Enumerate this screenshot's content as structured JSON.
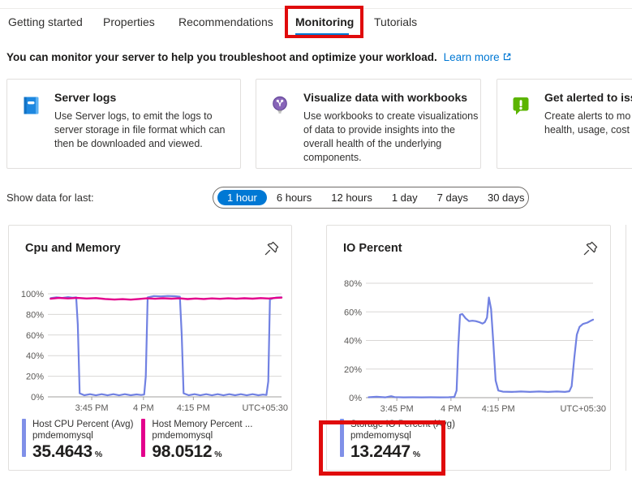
{
  "tabs": [
    "Getting started",
    "Properties",
    "Recommendations",
    "Monitoring",
    "Tutorials"
  ],
  "active_tab": "Monitoring",
  "intro": {
    "text": "You can monitor your server to help you troubleshoot and optimize your workload.",
    "link": "Learn more"
  },
  "cards": [
    {
      "icon": "server-logs-icon",
      "title": "Server logs",
      "lines": [
        "Use Server logs, to emit the logs to",
        "server storage in file format which can",
        "then be downloaded and viewed."
      ]
    },
    {
      "icon": "workbooks-icon",
      "title": "Visualize data with workbooks",
      "lines": [
        "Use workbooks to create visualizations",
        "of data to provide insights into the",
        "overall health of the underlying",
        "components."
      ]
    },
    {
      "icon": "alerts-icon",
      "title": "Get alerted to iss",
      "lines": [
        "Create alerts to mo",
        "health, usage, cost"
      ]
    }
  ],
  "time_range": {
    "label": "Show data for last:",
    "options": [
      "1 hour",
      "6 hours",
      "12 hours",
      "1 day",
      "7 days",
      "30 days"
    ],
    "selected": "1 hour"
  },
  "colors": {
    "accent": "#0078d4",
    "highlight_red": "#e00b0c",
    "line_blue": "#7181e2",
    "line_pink": "#e3008c",
    "legend_bar_blue": "#8090e8"
  },
  "chart_data": [
    {
      "type": "line",
      "title": "Cpu and Memory",
      "corner_label": "UTC+05:30",
      "ylim": [
        0,
        100
      ],
      "yticks": [
        {
          "v": 0,
          "label": "0%"
        },
        {
          "v": 20,
          "label": "20%"
        },
        {
          "v": 40,
          "label": "40%"
        },
        {
          "v": 60,
          "label": "60%"
        },
        {
          "v": 80,
          "label": "80%"
        },
        {
          "v": 100,
          "label": "100%"
        }
      ],
      "xticks": [
        {
          "f": 0.182,
          "label": "3:45 PM"
        },
        {
          "f": 0.405,
          "label": "4 PM"
        },
        {
          "f": 0.62,
          "label": "4:15 PM"
        }
      ],
      "series": [
        {
          "name": "Host CPU Percent (Avg)",
          "resource": "pmdemomysql",
          "value": "35.4643",
          "unit": "%",
          "color": "#7181e2",
          "width": 2.2,
          "points": [
            [
              0.005,
              95.8
            ],
            [
              0.03,
              96.6
            ],
            [
              0.055,
              96.0
            ],
            [
              0.08,
              96.8
            ],
            [
              0.1,
              96.2
            ],
            [
              0.115,
              96.5
            ],
            [
              0.122,
              70
            ],
            [
              0.13,
              3.5
            ],
            [
              0.15,
              1.6
            ],
            [
              0.175,
              2.6
            ],
            [
              0.2,
              1.5
            ],
            [
              0.225,
              2.6
            ],
            [
              0.25,
              1.5
            ],
            [
              0.275,
              2.6
            ],
            [
              0.3,
              1.5
            ],
            [
              0.325,
              2.6
            ],
            [
              0.35,
              1.6
            ],
            [
              0.375,
              2.4
            ],
            [
              0.395,
              1.8
            ],
            [
              0.408,
              2.2
            ],
            [
              0.415,
              20
            ],
            [
              0.423,
              96.5
            ],
            [
              0.45,
              97.8
            ],
            [
              0.48,
              97.5
            ],
            [
              0.51,
              97.9
            ],
            [
              0.54,
              97.6
            ],
            [
              0.562,
              97.2
            ],
            [
              0.57,
              60
            ],
            [
              0.578,
              3.5
            ],
            [
              0.6,
              1.6
            ],
            [
              0.625,
              2.6
            ],
            [
              0.65,
              1.5
            ],
            [
              0.675,
              2.6
            ],
            [
              0.7,
              1.5
            ],
            [
              0.725,
              2.6
            ],
            [
              0.75,
              1.5
            ],
            [
              0.775,
              2.6
            ],
            [
              0.8,
              1.6
            ],
            [
              0.825,
              2.6
            ],
            [
              0.85,
              1.5
            ],
            [
              0.875,
              2.6
            ],
            [
              0.9,
              1.6
            ],
            [
              0.92,
              2.2
            ],
            [
              0.935,
              1.8
            ],
            [
              0.943,
              15
            ],
            [
              0.95,
              94.5
            ],
            [
              0.965,
              95.8
            ],
            [
              0.98,
              96.4
            ],
            [
              1,
              96.6
            ]
          ]
        },
        {
          "name": "Host Memory Percent ...",
          "resource": "pmdemomysql",
          "value": "98.0512",
          "unit": "%",
          "color": "#e3008c",
          "width": 2.4,
          "points": [
            [
              0.005,
              95.2
            ],
            [
              0.04,
              96.0
            ],
            [
              0.08,
              95.5
            ],
            [
              0.12,
              96.0
            ],
            [
              0.16,
              95.4
            ],
            [
              0.2,
              95.8
            ],
            [
              0.24,
              95.0
            ],
            [
              0.28,
              94.4
            ],
            [
              0.315,
              94.8
            ],
            [
              0.35,
              94.3
            ],
            [
              0.385,
              95.0
            ],
            [
              0.42,
              95.6
            ],
            [
              0.455,
              95.2
            ],
            [
              0.49,
              95.7
            ],
            [
              0.525,
              95.3
            ],
            [
              0.56,
              95.6
            ],
            [
              0.595,
              94.9
            ],
            [
              0.63,
              95.4
            ],
            [
              0.665,
              95.0
            ],
            [
              0.7,
              95.5
            ],
            [
              0.735,
              95.1
            ],
            [
              0.77,
              95.6
            ],
            [
              0.805,
              95.2
            ],
            [
              0.84,
              95.7
            ],
            [
              0.875,
              95.3
            ],
            [
              0.91,
              95.8
            ],
            [
              0.945,
              95.4
            ],
            [
              0.975,
              96.0
            ],
            [
              1,
              96.3
            ]
          ]
        }
      ]
    },
    {
      "type": "line",
      "title": "IO Percent",
      "corner_label": "UTC+05:30",
      "ylim": [
        0,
        80
      ],
      "yticks": [
        {
          "v": 0,
          "label": "0%"
        },
        {
          "v": 20,
          "label": "20%"
        },
        {
          "v": 40,
          "label": "40%"
        },
        {
          "v": 60,
          "label": "60%"
        },
        {
          "v": 80,
          "label": "80%"
        }
      ],
      "xticks": [
        {
          "f": 0.13,
          "label": "3:45 PM"
        },
        {
          "f": 0.37,
          "label": "4 PM"
        },
        {
          "f": 0.58,
          "label": "4:15 PM"
        }
      ],
      "series": [
        {
          "name": "Storage IO Percent (Avg)",
          "resource": "pmdemomysql",
          "value": "13.2447",
          "unit": "%",
          "color": "#7181e2",
          "width": 2.2,
          "points": [
            [
              0.005,
              0.3
            ],
            [
              0.04,
              0.6
            ],
            [
              0.08,
              0.2
            ],
            [
              0.105,
              1.0
            ],
            [
              0.12,
              0.4
            ],
            [
              0.16,
              0.2
            ],
            [
              0.2,
              0.3
            ],
            [
              0.24,
              0.2
            ],
            [
              0.28,
              0.3
            ],
            [
              0.32,
              0.2
            ],
            [
              0.36,
              0.3
            ],
            [
              0.385,
              0.5
            ],
            [
              0.395,
              5
            ],
            [
              0.402,
              35
            ],
            [
              0.41,
              58
            ],
            [
              0.42,
              58.5
            ],
            [
              0.435,
              55.5
            ],
            [
              0.45,
              53.5
            ],
            [
              0.465,
              53.8
            ],
            [
              0.48,
              53.5
            ],
            [
              0.495,
              52.8
            ],
            [
              0.51,
              51.8
            ],
            [
              0.52,
              52.8
            ],
            [
              0.53,
              56
            ],
            [
              0.538,
              70
            ],
            [
              0.548,
              62
            ],
            [
              0.558,
              38
            ],
            [
              0.568,
              12
            ],
            [
              0.58,
              5
            ],
            [
              0.6,
              4.2
            ],
            [
              0.64,
              4
            ],
            [
              0.68,
              4.3
            ],
            [
              0.72,
              4
            ],
            [
              0.76,
              4.3
            ],
            [
              0.8,
              4
            ],
            [
              0.84,
              4.3
            ],
            [
              0.875,
              4
            ],
            [
              0.895,
              4.5
            ],
            [
              0.905,
              8
            ],
            [
              0.917,
              28
            ],
            [
              0.928,
              44
            ],
            [
              0.94,
              49.5
            ],
            [
              0.955,
              51.5
            ],
            [
              0.975,
              52.5
            ],
            [
              0.99,
              53.8
            ],
            [
              1,
              54.5
            ]
          ]
        }
      ]
    }
  ]
}
